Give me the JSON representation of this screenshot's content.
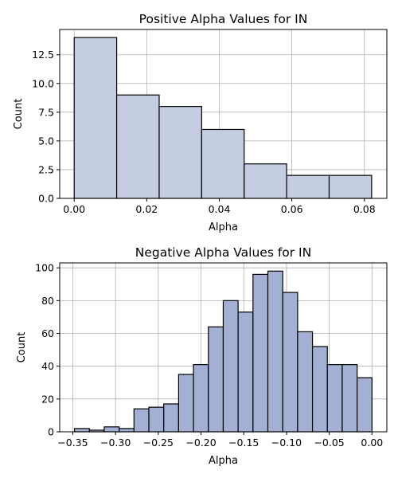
{
  "chart_data": [
    {
      "type": "bar",
      "title": "Positive Alpha Values for IN",
      "xlabel": "Alpha",
      "ylabel": "Count",
      "bar_color": "#c4cde1",
      "grid": true,
      "xlim": [
        -0.004,
        0.0862
      ],
      "ylim": [
        0,
        14.7
      ],
      "xticks": [
        0.0,
        0.02,
        0.04,
        0.06,
        0.08
      ],
      "xtick_labels": [
        "0.00",
        "0.02",
        "0.04",
        "0.06",
        "0.08"
      ],
      "yticks": [
        0.0,
        2.5,
        5.0,
        7.5,
        10.0,
        12.5
      ],
      "ytick_labels": [
        "0.0",
        "2.5",
        "5.0",
        "7.5",
        "10.0",
        "12.5"
      ],
      "bins": [
        {
          "x0": 0.0,
          "x1": 0.01171,
          "count": 14
        },
        {
          "x0": 0.01171,
          "x1": 0.02343,
          "count": 9
        },
        {
          "x0": 0.02343,
          "x1": 0.03514,
          "count": 8
        },
        {
          "x0": 0.03514,
          "x1": 0.04686,
          "count": 6
        },
        {
          "x0": 0.04686,
          "x1": 0.05857,
          "count": 3
        },
        {
          "x0": 0.05857,
          "x1": 0.07029,
          "count": 2
        },
        {
          "x0": 0.07029,
          "x1": 0.082,
          "count": 2
        }
      ]
    },
    {
      "type": "bar",
      "title": "Negative Alpha Values for IN",
      "xlabel": "Alpha",
      "ylabel": "Count",
      "bar_color": "#a4b0d3",
      "grid": true,
      "xlim": [
        -0.3653,
        0.0174
      ],
      "ylim": [
        0,
        103
      ],
      "xticks": [
        -0.35,
        -0.3,
        -0.25,
        -0.2,
        -0.15,
        -0.1,
        -0.05,
        0.0
      ],
      "xtick_labels": [
        "−0.35",
        "−0.30",
        "−0.25",
        "−0.20",
        "−0.15",
        "−0.10",
        "−0.05",
        "0.00"
      ],
      "yticks": [
        0,
        20,
        40,
        60,
        80,
        100
      ],
      "ytick_labels": [
        "0",
        "20",
        "40",
        "60",
        "80",
        "100"
      ],
      "bins": [
        {
          "x0": -0.348,
          "x1": -0.3306,
          "count": 2
        },
        {
          "x0": -0.3306,
          "x1": -0.3132,
          "count": 1
        },
        {
          "x0": -0.3132,
          "x1": -0.2958,
          "count": 3
        },
        {
          "x0": -0.2958,
          "x1": -0.2784,
          "count": 2
        },
        {
          "x0": -0.2784,
          "x1": -0.261,
          "count": 14
        },
        {
          "x0": -0.261,
          "x1": -0.2436,
          "count": 15
        },
        {
          "x0": -0.2436,
          "x1": -0.2262,
          "count": 17
        },
        {
          "x0": -0.2262,
          "x1": -0.2088,
          "count": 35
        },
        {
          "x0": -0.2088,
          "x1": -0.1914,
          "count": 41
        },
        {
          "x0": -0.1914,
          "x1": -0.174,
          "count": 64
        },
        {
          "x0": -0.174,
          "x1": -0.1566,
          "count": 80
        },
        {
          "x0": -0.1566,
          "x1": -0.1392,
          "count": 73
        },
        {
          "x0": -0.1392,
          "x1": -0.1218,
          "count": 96
        },
        {
          "x0": -0.1218,
          "x1": -0.1044,
          "count": 98
        },
        {
          "x0": -0.1044,
          "x1": -0.087,
          "count": 85
        },
        {
          "x0": -0.087,
          "x1": -0.0696,
          "count": 61
        },
        {
          "x0": -0.0696,
          "x1": -0.0522,
          "count": 52
        },
        {
          "x0": -0.0522,
          "x1": -0.0348,
          "count": 41
        },
        {
          "x0": -0.0348,
          "x1": -0.0174,
          "count": 41
        },
        {
          "x0": -0.0174,
          "x1": 0.0,
          "count": 33
        }
      ]
    }
  ]
}
